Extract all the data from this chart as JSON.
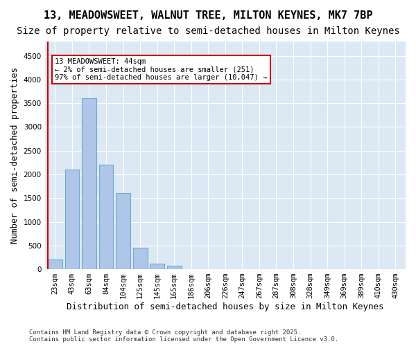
{
  "title1": "13, MEADOWSWEET, WALNUT TREE, MILTON KEYNES, MK7 7BP",
  "title2": "Size of property relative to semi-detached houses in Milton Keynes",
  "xlabel": "Distribution of semi-detached houses by size in Milton Keynes",
  "ylabel": "Number of semi-detached properties",
  "bin_labels": [
    "23sqm",
    "43sqm",
    "63sqm",
    "84sqm",
    "104sqm",
    "125sqm",
    "145sqm",
    "165sqm",
    "186sqm",
    "206sqm",
    "226sqm",
    "247sqm",
    "267sqm",
    "287sqm",
    "308sqm",
    "328sqm",
    "349sqm",
    "369sqm",
    "389sqm",
    "410sqm",
    "430sqm"
  ],
  "values": [
    200,
    2100,
    3600,
    2200,
    1600,
    450,
    120,
    70,
    0,
    0,
    0,
    0,
    0,
    0,
    0,
    0,
    0,
    0,
    0,
    0,
    0
  ],
  "bar_color": "#aec6e8",
  "bar_edge_color": "#6fa8d0",
  "annotation_text": "13 MEADOWSWEET: 44sqm\n← 2% of semi-detached houses are smaller (251)\n97% of semi-detached houses are larger (10,047) →",
  "annotation_box_color": "#ffffff",
  "annotation_box_edge": "#cc0000",
  "vline_color": "#cc0000",
  "vline_x": 0.5,
  "ylim": [
    0,
    4800
  ],
  "yticks": [
    0,
    500,
    1000,
    1500,
    2000,
    2500,
    3000,
    3500,
    4000,
    4500
  ],
  "background_color": "#dce9f5",
  "footer": "Contains HM Land Registry data © Crown copyright and database right 2025.\nContains public sector information licensed under the Open Government Licence v3.0.",
  "title1_fontsize": 11,
  "title2_fontsize": 10,
  "xlabel_fontsize": 9,
  "ylabel_fontsize": 9,
  "tick_fontsize": 7.5,
  "footer_fontsize": 6.5
}
